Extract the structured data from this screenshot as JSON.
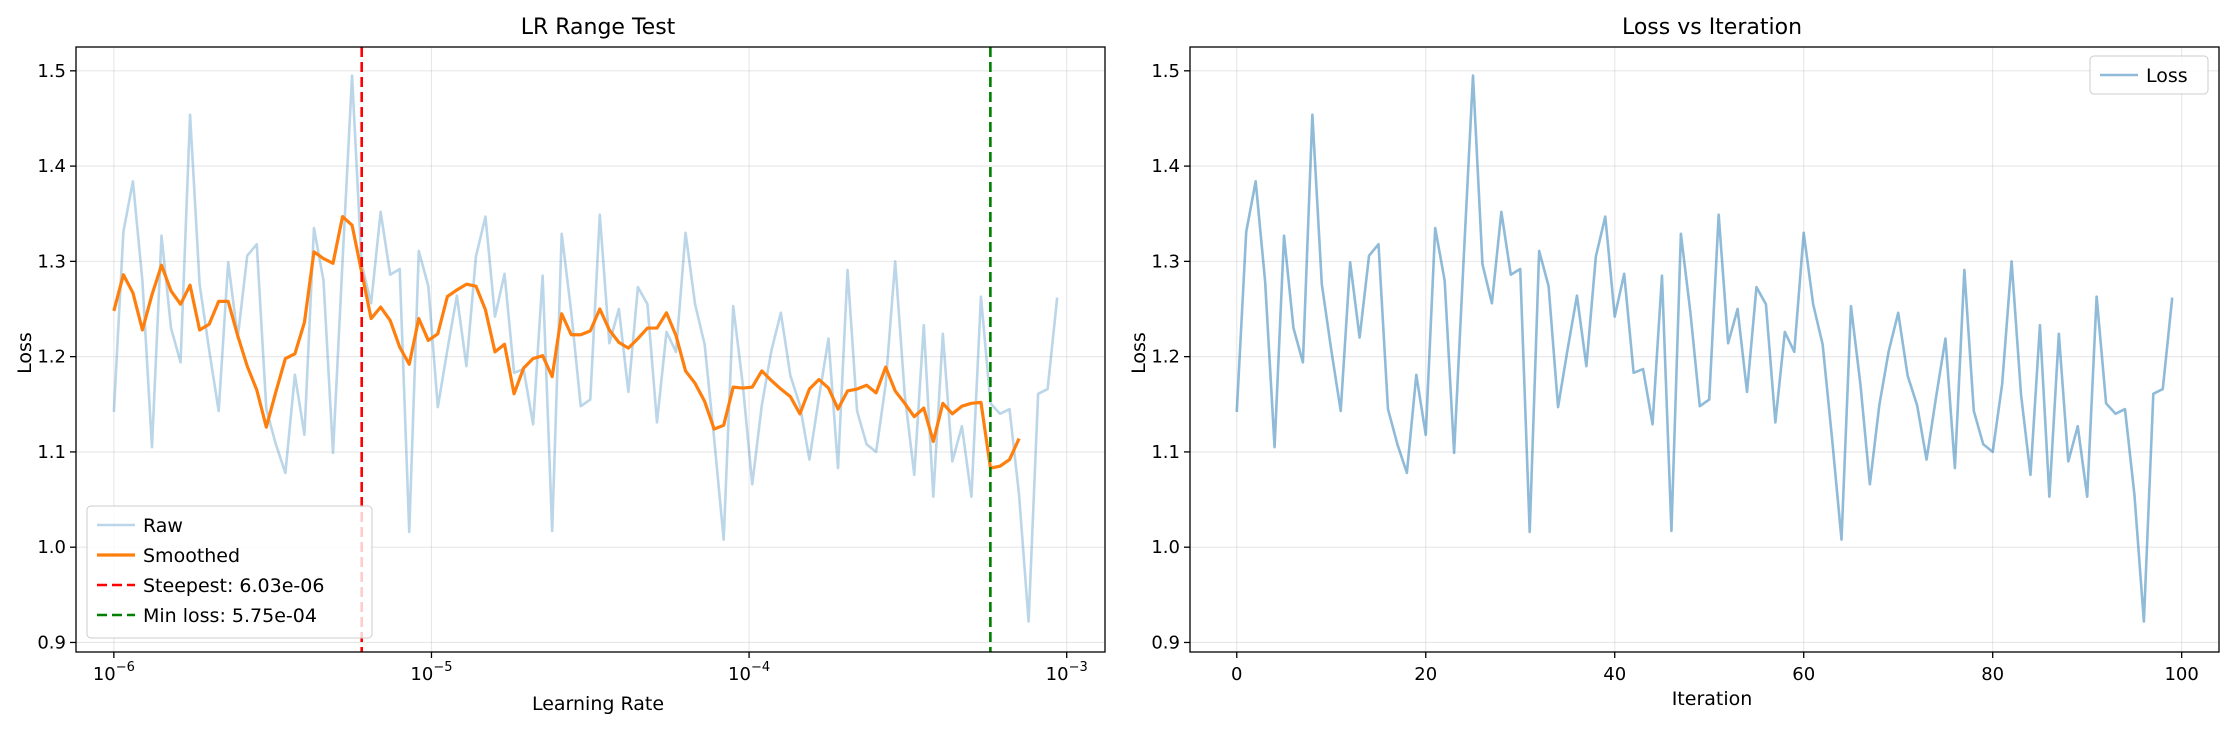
{
  "chart_data": [
    {
      "type": "line",
      "title": "LR Range Test",
      "xlabel": "Learning Rate",
      "ylabel": "Loss",
      "xscale": "log",
      "xlim": [
        7.6e-07,
        0.00132
      ],
      "ylim": [
        0.89,
        1.525
      ],
      "x_ticks": [
        1e-06,
        1e-05,
        0.0001,
        0.001
      ],
      "x_tick_labels": [
        [
          "10",
          "−6"
        ],
        [
          "10",
          "−5"
        ],
        [
          "10",
          "−4"
        ],
        [
          "10",
          "−3"
        ]
      ],
      "y_ticks": [
        0.9,
        1.0,
        1.1,
        1.2,
        1.3,
        1.4,
        1.5
      ],
      "y_tick_labels": [
        "0.9",
        "1.0",
        "1.1",
        "1.2",
        "1.3",
        "1.4",
        "1.5"
      ],
      "grid": true,
      "legend_position": "lower-left",
      "series": [
        {
          "name": "Raw",
          "color": "#1f77b4",
          "opacity": 0.3,
          "y": [
            1.142,
            1.331,
            1.384,
            1.279,
            1.105,
            1.327,
            1.23,
            1.194,
            1.454,
            1.276,
            1.207,
            1.143,
            1.299,
            1.22,
            1.306,
            1.318,
            1.145,
            1.108,
            1.078,
            1.181,
            1.118,
            1.335,
            1.28,
            1.099,
            1.3,
            1.495,
            1.297,
            1.256,
            1.352,
            1.286,
            1.292,
            1.016,
            1.311,
            1.274,
            1.147,
            1.207,
            1.264,
            1.19,
            1.305,
            1.347,
            1.242,
            1.287,
            1.183,
            1.187,
            1.129,
            1.285,
            1.017,
            1.329,
            1.247,
            1.148,
            1.155,
            1.349,
            1.214,
            1.25,
            1.163,
            1.273,
            1.255,
            1.131,
            1.226,
            1.205,
            1.33,
            1.255,
            1.213,
            1.114,
            1.008,
            1.253,
            1.171,
            1.066,
            1.149,
            1.206,
            1.246,
            1.18,
            1.149,
            1.092,
            1.157,
            1.219,
            1.083,
            1.291,
            1.143,
            1.108,
            1.1,
            1.171,
            1.3,
            1.16,
            1.076,
            1.233,
            1.053,
            1.224,
            1.09,
            1.127,
            1.053,
            1.263,
            1.151,
            1.14,
            1.145,
            1.055,
            0.922,
            1.161,
            1.166,
            1.262
          ]
        },
        {
          "name": "Smoothed",
          "color": "#ff7f0e",
          "opacity": 1,
          "y": [
            1.248,
            1.286,
            1.267,
            1.228,
            1.265,
            1.296,
            1.269,
            1.255,
            1.275,
            1.228,
            1.234,
            1.258,
            1.258,
            1.222,
            1.19,
            1.165,
            1.126,
            1.163,
            1.198,
            1.203,
            1.236,
            1.31,
            1.303,
            1.298,
            1.347,
            1.338,
            1.289,
            1.24,
            1.252,
            1.238,
            1.21,
            1.192,
            1.24,
            1.217,
            1.224,
            1.263,
            1.27,
            1.276,
            1.274,
            1.249,
            1.205,
            1.213,
            1.161,
            1.188,
            1.198,
            1.201,
            1.179,
            1.245,
            1.223,
            1.223,
            1.227,
            1.25,
            1.228,
            1.215,
            1.209,
            1.219,
            1.23,
            1.23,
            1.246,
            1.222,
            1.185,
            1.172,
            1.153,
            1.124,
            1.128,
            1.168,
            1.167,
            1.168,
            1.185,
            1.175,
            1.166,
            1.158,
            1.14,
            1.166,
            1.176,
            1.167,
            1.145,
            1.164,
            1.166,
            1.17,
            1.162,
            1.189,
            1.164,
            1.151,
            1.137,
            1.146,
            1.111,
            1.151,
            1.14,
            1.148,
            1.151,
            1.152,
            1.083,
            1.085,
            1.092,
            1.114
          ]
        }
      ],
      "vlines": [
        {
          "name": "Steepest: 6.03e-06",
          "x": 6.03e-06,
          "color": "#ff0000"
        },
        {
          "name": "Min loss: 5.75e-04",
          "x": 0.000575,
          "color": "#008000"
        }
      ]
    },
    {
      "type": "line",
      "title": "Loss vs Iteration",
      "xlabel": "Iteration",
      "ylabel": "Loss",
      "xlim": [
        -4.95,
        103.95
      ],
      "ylim": [
        0.89,
        1.525
      ],
      "x_ticks": [
        0,
        20,
        40,
        60,
        80,
        100
      ],
      "x_tick_labels": [
        "0",
        "20",
        "40",
        "60",
        "80",
        "100"
      ],
      "y_ticks": [
        0.9,
        1.0,
        1.1,
        1.2,
        1.3,
        1.4,
        1.5
      ],
      "y_tick_labels": [
        "0.9",
        "1.0",
        "1.1",
        "1.2",
        "1.3",
        "1.4",
        "1.5"
      ],
      "grid": true,
      "legend_position": "top-right",
      "series": [
        {
          "name": "Loss",
          "color": "#1f77b4",
          "opacity": 0.5,
          "y": [
            1.142,
            1.331,
            1.384,
            1.279,
            1.105,
            1.327,
            1.23,
            1.194,
            1.454,
            1.276,
            1.207,
            1.143,
            1.299,
            1.22,
            1.306,
            1.318,
            1.145,
            1.108,
            1.078,
            1.181,
            1.118,
            1.335,
            1.28,
            1.099,
            1.3,
            1.495,
            1.297,
            1.256,
            1.352,
            1.286,
            1.292,
            1.016,
            1.311,
            1.274,
            1.147,
            1.207,
            1.264,
            1.19,
            1.305,
            1.347,
            1.242,
            1.287,
            1.183,
            1.187,
            1.129,
            1.285,
            1.017,
            1.329,
            1.247,
            1.148,
            1.155,
            1.349,
            1.214,
            1.25,
            1.163,
            1.273,
            1.255,
            1.131,
            1.226,
            1.205,
            1.33,
            1.255,
            1.213,
            1.114,
            1.008,
            1.253,
            1.171,
            1.066,
            1.149,
            1.206,
            1.246,
            1.18,
            1.149,
            1.092,
            1.157,
            1.219,
            1.083,
            1.291,
            1.143,
            1.108,
            1.1,
            1.171,
            1.3,
            1.16,
            1.076,
            1.233,
            1.053,
            1.224,
            1.09,
            1.127,
            1.053,
            1.263,
            1.151,
            1.14,
            1.145,
            1.055,
            0.922,
            1.161,
            1.166,
            1.262
          ]
        }
      ]
    }
  ]
}
